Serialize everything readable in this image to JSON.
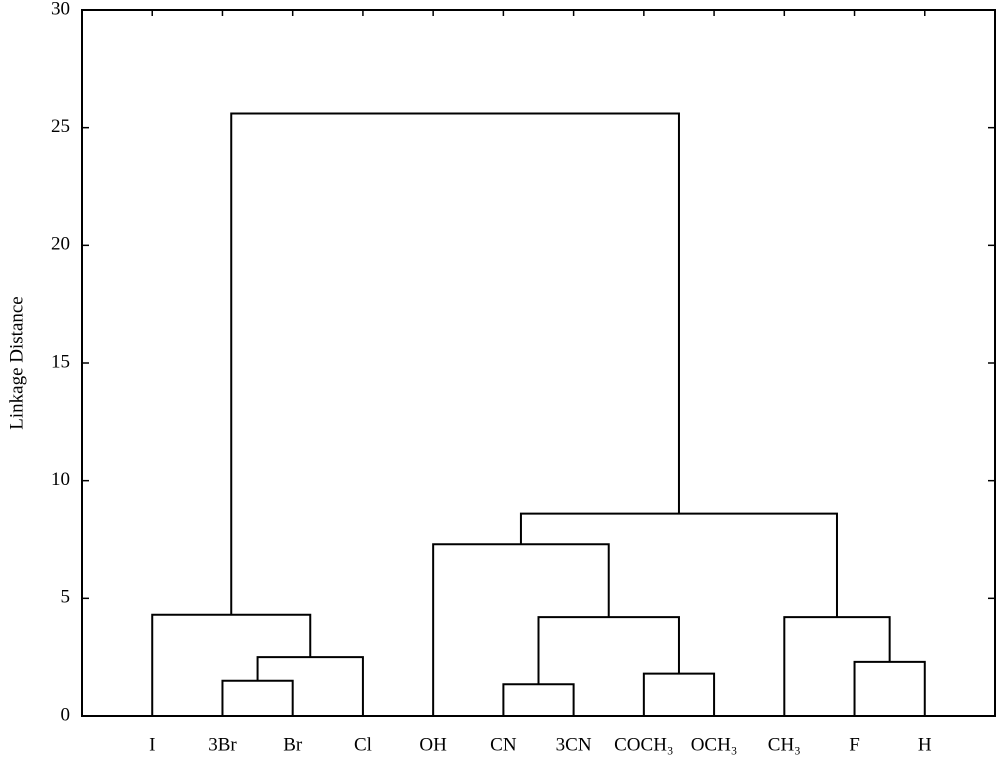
{
  "chart_data": {
    "type": "dendrogram",
    "y_label": "Linkage Distance",
    "leaves": [
      "I",
      "3Br",
      "Br",
      "Cl",
      "OH",
      "CN",
      "3CN",
      "COCH₃",
      "OCH₃",
      "CH₃",
      "F",
      "H"
    ],
    "merges": [
      {
        "children": [
          1,
          2
        ],
        "height": 1.5
      },
      {
        "children": [
          12,
          3
        ],
        "height": 2.5
      },
      {
        "children": [
          0,
          13
        ],
        "height": 4.3
      },
      {
        "children": [
          5,
          6
        ],
        "height": 1.35
      },
      {
        "children": [
          7,
          8
        ],
        "height": 1.8
      },
      {
        "children": [
          15,
          16
        ],
        "height": 4.2
      },
      {
        "children": [
          4,
          17
        ],
        "height": 7.3
      },
      {
        "children": [
          10,
          11
        ],
        "height": 2.3
      },
      {
        "children": [
          9,
          19
        ],
        "height": 4.2
      },
      {
        "children": [
          18,
          20
        ],
        "height": 8.6
      },
      {
        "children": [
          14,
          21
        ],
        "height": 25.6
      }
    ],
    "color": "#000000",
    "ylim": [
      0,
      30
    ],
    "yticks": [
      0,
      5,
      10,
      15,
      20,
      25,
      30
    ]
  }
}
